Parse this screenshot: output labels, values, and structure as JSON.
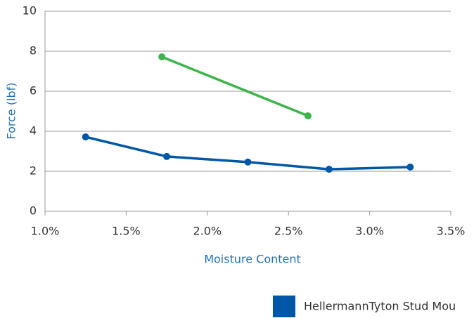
{
  "chart_data": {
    "type": "line",
    "x_label": "Moisture Content",
    "y_label": "Force (lbf)",
    "xlim": [
      1.0,
      3.5
    ],
    "xticks": [
      {
        "value": 1.0,
        "label": "1.0%"
      },
      {
        "value": 1.5,
        "label": "1.5%"
      },
      {
        "value": 2.0,
        "label": "2.0%"
      },
      {
        "value": 2.5,
        "label": "2.5%"
      },
      {
        "value": 3.0,
        "label": "3.0%"
      },
      {
        "value": 3.5,
        "label": "3.5%"
      }
    ],
    "ylim": [
      0,
      10
    ],
    "yticks": [
      0,
      2,
      4,
      6,
      8,
      10
    ],
    "grid": true,
    "legend": "bottom-right",
    "series": [
      {
        "name": "HellermannTyton Stud Mou",
        "color": "#0057a8",
        "x": [
          1.25,
          1.75,
          2.25,
          2.75,
          3.25
        ],
        "values": [
          3.72,
          2.74,
          2.46,
          2.1,
          2.21
        ]
      },
      {
        "color": "#3cb54a",
        "x": [
          1.72,
          2.62
        ],
        "values": [
          7.72,
          4.77
        ]
      }
    ]
  }
}
